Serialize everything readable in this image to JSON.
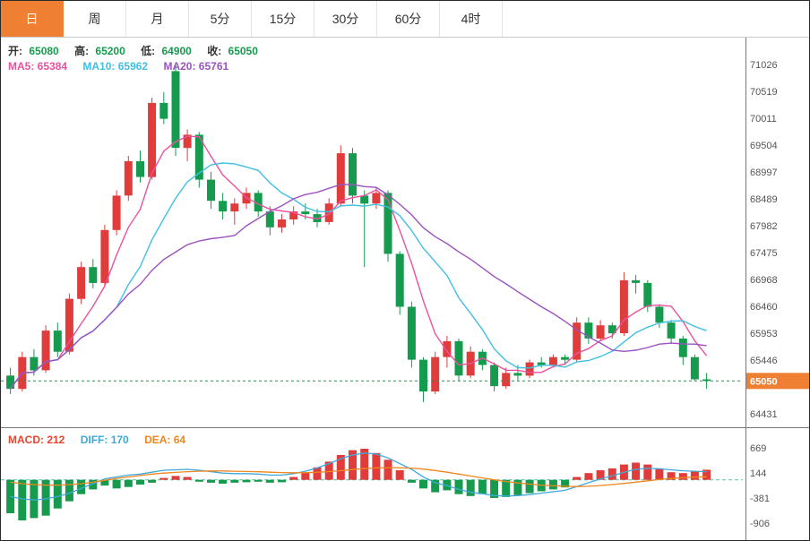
{
  "tabs": {
    "items": [
      {
        "key": "day",
        "label": "日",
        "active": true
      },
      {
        "key": "week",
        "label": "周",
        "active": false
      },
      {
        "key": "month",
        "label": "月",
        "active": false
      },
      {
        "key": "5min",
        "label": "5分",
        "active": false
      },
      {
        "key": "15min",
        "label": "15分",
        "active": false
      },
      {
        "key": "30min",
        "label": "30分",
        "active": false
      },
      {
        "key": "60min",
        "label": "60分",
        "active": false
      },
      {
        "key": "4hour",
        "label": "4时",
        "active": false
      }
    ]
  },
  "legend": {
    "ohlc": {
      "open_label": "开:",
      "open_value": "65080",
      "high_label": "高:",
      "high_value": "65200",
      "low_label": "低:",
      "low_value": "64900",
      "close_label": "收:",
      "close_value": "65050"
    },
    "ma": {
      "ma5": "MA5: 65384",
      "ma10": "MA10: 65962",
      "ma20": "MA20: 65761"
    },
    "macd": {
      "macd": "MACD: 212",
      "diff": "DIFF: 170",
      "dea": "DEA: 64"
    }
  },
  "price_tag": {
    "value": "65050"
  },
  "colors": {
    "accent": "#ef7f33",
    "up": "#e03c3c",
    "down": "#169b4e",
    "ma5": "#ec519f",
    "ma10": "#41bfe3",
    "ma20": "#9b53c1",
    "diff_line": "#3fa9dc",
    "dea_line": "#f0861d",
    "price_line": "#169b4e",
    "zero_line": "#53c6a2"
  },
  "chart_data": {
    "type": "candlestick+macd",
    "title": "Daily candlestick chart with MA5/MA10/MA20 overlays and MACD sub-chart",
    "price_axis": {
      "top_value": 71026,
      "step": 507.5,
      "labels": [
        "71026",
        "70519",
        "70011",
        "69504",
        "68997",
        "68489",
        "67982",
        "67475",
        "66968",
        "66460",
        "65953",
        "65446",
        "",
        "64431"
      ]
    },
    "macd_axis": {
      "step": 525,
      "labels": [
        "669",
        "144",
        "-381",
        "-906"
      ]
    },
    "current_price_line": 65050,
    "ma_periods": [
      5,
      10,
      20
    ],
    "candles": [
      [
        65150,
        65300,
        64800,
        64900
      ],
      [
        64900,
        65600,
        64850,
        65500
      ],
      [
        65500,
        65650,
        65150,
        65250
      ],
      [
        65250,
        66100,
        65200,
        66000
      ],
      [
        66000,
        66150,
        65500,
        65600
      ],
      [
        65600,
        66700,
        65550,
        66600
      ],
      [
        66600,
        67300,
        66500,
        67200
      ],
      [
        67200,
        67350,
        66800,
        66900
      ],
      [
        66900,
        68000,
        66850,
        67900
      ],
      [
        67900,
        68650,
        67800,
        68550
      ],
      [
        68550,
        69300,
        68450,
        69200
      ],
      [
        69200,
        69400,
        68800,
        68900
      ],
      [
        68900,
        70400,
        68850,
        70300
      ],
      [
        70300,
        70500,
        69900,
        70000
      ],
      [
        70900,
        71026,
        69300,
        69450
      ],
      [
        69450,
        69800,
        69200,
        69700
      ],
      [
        69700,
        69750,
        68700,
        68850
      ],
      [
        68850,
        69000,
        68300,
        68450
      ],
      [
        68450,
        68600,
        68100,
        68250
      ],
      [
        68250,
        68500,
        68000,
        68400
      ],
      [
        68400,
        68700,
        68300,
        68600
      ],
      [
        68600,
        68650,
        68150,
        68250
      ],
      [
        68250,
        68350,
        67800,
        67950
      ],
      [
        67950,
        68200,
        67850,
        68100
      ],
      [
        68100,
        68350,
        68000,
        68250
      ],
      [
        68250,
        68400,
        68100,
        68200
      ],
      [
        68200,
        68300,
        67950,
        68050
      ],
      [
        68050,
        68500,
        68000,
        68400
      ],
      [
        68400,
        69500,
        68350,
        69350
      ],
      [
        69350,
        69450,
        68400,
        68550
      ],
      [
        68550,
        68650,
        67200,
        68400
      ],
      [
        68400,
        68700,
        68300,
        68600
      ],
      [
        68600,
        68650,
        67300,
        67450
      ],
      [
        67450,
        67500,
        66300,
        66450
      ],
      [
        66450,
        66550,
        65300,
        65450
      ],
      [
        65450,
        65500,
        64650,
        64850
      ],
      [
        64850,
        65600,
        64800,
        65500
      ],
      [
        65500,
        65900,
        65300,
        65800
      ],
      [
        65800,
        65850,
        65050,
        65150
      ],
      [
        65150,
        65700,
        65100,
        65600
      ],
      [
        65600,
        65650,
        65250,
        65350
      ],
      [
        65350,
        65400,
        64850,
        64950
      ],
      [
        64950,
        65300,
        64900,
        65200
      ],
      [
        65200,
        65350,
        65050,
        65150
      ],
      [
        65150,
        65450,
        65100,
        65400
      ],
      [
        65400,
        65500,
        65300,
        65350
      ],
      [
        65350,
        65550,
        65300,
        65500
      ],
      [
        65500,
        65550,
        65350,
        65450
      ],
      [
        65450,
        66250,
        65400,
        66150
      ],
      [
        66150,
        66250,
        65750,
        65850
      ],
      [
        65850,
        66200,
        65800,
        66100
      ],
      [
        66100,
        66150,
        65850,
        65950
      ],
      [
        65950,
        67100,
        65900,
        66950
      ],
      [
        66950,
        67050,
        66700,
        66900
      ],
      [
        66900,
        66950,
        66350,
        66450
      ],
      [
        66450,
        66500,
        66050,
        66150
      ],
      [
        66150,
        66200,
        65750,
        65850
      ],
      [
        65850,
        65900,
        65350,
        65500
      ],
      [
        65500,
        65550,
        65050,
        65080
      ],
      [
        65080,
        65200,
        64900,
        65050
      ]
    ],
    "macd": {
      "histogram": [
        -700,
        -850,
        -800,
        -750,
        -600,
        -450,
        -300,
        -200,
        -120,
        -180,
        -150,
        -100,
        -60,
        40,
        80,
        60,
        -40,
        -60,
        -80,
        -60,
        -50,
        -40,
        -60,
        -50,
        60,
        150,
        260,
        380,
        520,
        620,
        650,
        560,
        420,
        200,
        -60,
        -180,
        -260,
        -220,
        -300,
        -340,
        -300,
        -380,
        -360,
        -320,
        -280,
        -240,
        -200,
        -160,
        60,
        140,
        200,
        240,
        320,
        360,
        320,
        240,
        160,
        140,
        180,
        212
      ],
      "diff": [
        -350,
        -400,
        -420,
        -400,
        -350,
        -280,
        -180,
        -80,
        20,
        60,
        100,
        120,
        160,
        200,
        210,
        220,
        200,
        170,
        140,
        130,
        130,
        120,
        100,
        100,
        130,
        180,
        250,
        340,
        440,
        520,
        560,
        540,
        460,
        340,
        220,
        60,
        -60,
        -120,
        -200,
        -260,
        -290,
        -330,
        -340,
        -330,
        -310,
        -280,
        -250,
        -220,
        -140,
        -60,
        20,
        80,
        160,
        220,
        240,
        230,
        210,
        190,
        180,
        170
      ],
      "dea": [
        -50,
        -80,
        -100,
        -110,
        -110,
        -100,
        -80,
        -50,
        -10,
        30,
        60,
        90,
        120,
        140,
        155,
        170,
        180,
        185,
        185,
        180,
        175,
        168,
        160,
        152,
        148,
        150,
        158,
        172,
        192,
        215,
        235,
        250,
        255,
        252,
        245,
        225,
        195,
        160,
        120,
        80,
        40,
        0,
        -35,
        -65,
        -90,
        -110,
        -125,
        -135,
        -140,
        -135,
        -120,
        -100,
        -75,
        -48,
        -20,
        5,
        28,
        45,
        56,
        64
      ]
    }
  }
}
